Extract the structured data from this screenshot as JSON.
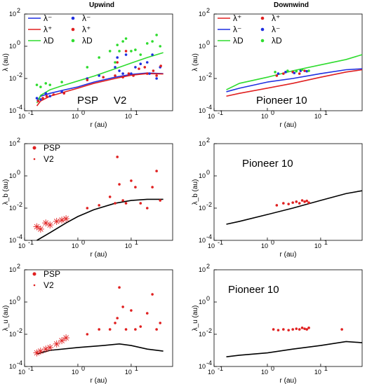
{
  "header": {
    "left_title": "Upwind",
    "right_title": "Downwind"
  },
  "axes": {
    "xlabel": "r (au)",
    "ylabels": [
      "λ (au)",
      "λ (au)",
      "λ_b (au)",
      "λ_b (au)",
      "λ_u (au)",
      "λ_u (au)"
    ],
    "xticks": [
      "10",
      "10",
      "10",
      "10"
    ],
    "xtick_exp": [
      "-1",
      "0",
      "1",
      ""
    ],
    "yticks": [
      "10",
      "10",
      "10",
      "10"
    ],
    "ytick_exp": [
      "-4",
      "-2",
      "0",
      "2"
    ]
  },
  "annotations": {
    "psp": "PSP",
    "v2": "V2",
    "pioneer": "Pioneer 10"
  },
  "legends": {
    "upwind_top": [
      "λ⁻",
      "λ⁺",
      "λ_D",
      "λ⁻",
      "λ⁺",
      "λ_D"
    ],
    "downwind_top": [
      "λ⁺",
      "λ⁻",
      "λ_D",
      "λ⁺",
      "λ⁻",
      "λ_D"
    ],
    "upwind_bottom": [
      "PSP",
      "V2"
    ]
  },
  "colors": {
    "blue": "#1f2fe0",
    "red": "#e02020",
    "green": "#2fdc2f",
    "black": "#000000"
  },
  "chart_data": [
    {
      "panel": "upwind-lambda",
      "type": "line",
      "title": "Upwind",
      "xlabel": "r (au)",
      "ylabel": "λ (au)",
      "xscale": "log",
      "yscale": "log",
      "xlim": [
        0.1,
        60
      ],
      "ylim": [
        0.0001,
        100
      ],
      "series": [
        {
          "name": "λ⁻ model",
          "color": "#1f2fe0",
          "kind": "line",
          "x": [
            0.17,
            0.2,
            0.3,
            0.5,
            1,
            2,
            5,
            10,
            20,
            40
          ],
          "y": [
            0.0004,
            0.0008,
            0.0012,
            0.0018,
            0.003,
            0.006,
            0.012,
            0.018,
            0.022,
            0.02
          ]
        },
        {
          "name": "λ⁺ model",
          "color": "#e02020",
          "kind": "line",
          "x": [
            0.17,
            0.2,
            0.3,
            0.5,
            1,
            2,
            5,
            10,
            20,
            40
          ],
          "y": [
            0.0002,
            0.0004,
            0.0008,
            0.0013,
            0.0025,
            0.005,
            0.01,
            0.016,
            0.02,
            0.019
          ]
        },
        {
          "name": "λ_D model",
          "color": "#2fdc2f",
          "kind": "line",
          "x": [
            0.17,
            0.2,
            0.3,
            0.5,
            1,
            2,
            5,
            10,
            20,
            40
          ],
          "y": [
            0.0003,
            0.0009,
            0.002,
            0.0035,
            0.007,
            0.014,
            0.04,
            0.09,
            0.2,
            0.4
          ]
        },
        {
          "name": "λ⁻ data",
          "color": "#1f2fe0",
          "kind": "points",
          "x": [
            0.17,
            0.2,
            0.25,
            0.3,
            0.5,
            1.5,
            2.5,
            5,
            5.5,
            6,
            7,
            8,
            10,
            12,
            15,
            20,
            22,
            25,
            30,
            35
          ],
          "y": [
            0.0006,
            0.0005,
            0.0012,
            0.0008,
            0.0015,
            0.01,
            0.015,
            0.05,
            0.2,
            0.03,
            0.02,
            0.3,
            0.02,
            0.05,
            0.08,
            0.1,
            0.02,
            0.3,
            0.01,
            0.05
          ]
        },
        {
          "name": "λ⁺ data",
          "color": "#e02020",
          "kind": "points",
          "x": [
            0.18,
            0.22,
            0.26,
            0.35,
            0.55,
            1.5,
            3,
            5,
            5.5,
            7,
            8,
            9,
            11,
            14,
            18,
            20,
            26,
            30,
            36
          ],
          "y": [
            0.0004,
            0.0006,
            0.0008,
            0.001,
            0.0012,
            0.008,
            0.012,
            0.015,
            0.1,
            0.012,
            0.5,
            0.02,
            0.015,
            0.04,
            0.05,
            0.02,
            0.03,
            0.015,
            0.06
          ]
        },
        {
          "name": "λ_D data",
          "color": "#2fdc2f",
          "kind": "points",
          "x": [
            0.17,
            0.2,
            0.25,
            0.3,
            0.5,
            1.5,
            2.5,
            4,
            5,
            5.5,
            6,
            7,
            8,
            10,
            12,
            15,
            20,
            25,
            30,
            35
          ],
          "y": [
            0.004,
            0.003,
            0.005,
            0.004,
            0.006,
            0.05,
            0.2,
            0.5,
            0.1,
            1.2,
            0.5,
            2,
            3,
            0.5,
            0.6,
            0.3,
            1.5,
            2,
            5,
            1
          ]
        }
      ]
    },
    {
      "panel": "downwind-lambda",
      "type": "line",
      "title": "Downwind",
      "xlabel": "r (au)",
      "ylabel": "λ (au)",
      "xscale": "log",
      "yscale": "log",
      "xlim": [
        0.1,
        60
      ],
      "ylim": [
        0.0001,
        100
      ],
      "series": [
        {
          "name": "λ⁺ model",
          "color": "#e02020",
          "kind": "line",
          "x": [
            0.17,
            0.3,
            1,
            3,
            10,
            30,
            60
          ],
          "y": [
            0.0008,
            0.0012,
            0.0025,
            0.005,
            0.012,
            0.025,
            0.035
          ]
        },
        {
          "name": "λ⁻ model",
          "color": "#1f2fe0",
          "kind": "line",
          "x": [
            0.17,
            0.3,
            1,
            3,
            10,
            30,
            60
          ],
          "y": [
            0.0015,
            0.0025,
            0.006,
            0.01,
            0.02,
            0.035,
            0.04
          ]
        },
        {
          "name": "λ_D model",
          "color": "#2fdc2f",
          "kind": "line",
          "x": [
            0.17,
            0.3,
            1,
            3,
            10,
            30,
            60
          ],
          "y": [
            0.002,
            0.005,
            0.012,
            0.03,
            0.07,
            0.15,
            0.3
          ]
        },
        {
          "name": "λ⁺ data",
          "color": "#e02020",
          "kind": "points",
          "x": [
            1.5,
            2,
            3,
            4,
            5
          ],
          "y": [
            0.015,
            0.02,
            0.025,
            0.02,
            0.03
          ]
        },
        {
          "name": "λ⁻ data",
          "color": "#1f2fe0",
          "kind": "points",
          "x": [
            1.6,
            2.2,
            3.2,
            4.2,
            5.5
          ],
          "y": [
            0.02,
            0.025,
            0.022,
            0.03,
            0.028
          ]
        },
        {
          "name": "λ_D data",
          "color": "#2fdc2f",
          "kind": "points",
          "x": [
            1.4,
            2.4,
            3.5,
            4.5,
            6
          ],
          "y": [
            0.025,
            0.03,
            0.028,
            0.035,
            0.03
          ]
        }
      ]
    },
    {
      "panel": "upwind-lambda-b",
      "type": "scatter",
      "xlabel": "r (au)",
      "ylabel": "λ_b (au)",
      "xscale": "log",
      "yscale": "log",
      "xlim": [
        0.1,
        60
      ],
      "ylim": [
        0.0001,
        100
      ],
      "series": [
        {
          "name": "model",
          "color": "#000000",
          "kind": "line",
          "x": [
            0.17,
            0.3,
            0.6,
            1,
            2,
            5,
            10,
            20,
            40
          ],
          "y": [
            0.0001,
            0.0003,
            0.0012,
            0.003,
            0.008,
            0.02,
            0.03,
            0.035,
            0.035
          ]
        },
        {
          "name": "PSP",
          "color": "#e02020",
          "kind": "star",
          "x": [
            0.17,
            0.2,
            0.25,
            0.3,
            0.4,
            0.5,
            0.6
          ],
          "y": [
            0.0007,
            0.0005,
            0.0012,
            0.0009,
            0.0015,
            0.0018,
            0.0022
          ]
        },
        {
          "name": "V2",
          "color": "#e02020",
          "kind": "points",
          "x": [
            1.5,
            2.5,
            4,
            5,
            5.5,
            6,
            7,
            8,
            10,
            12,
            15,
            20,
            25,
            30,
            35
          ],
          "y": [
            0.01,
            0.015,
            0.05,
            0.02,
            15,
            0.3,
            0.03,
            0.02,
            0.5,
            0.2,
            0.02,
            0.01,
            0.2,
            2,
            0.03
          ]
        }
      ]
    },
    {
      "panel": "downwind-lambda-b",
      "type": "scatter",
      "xlabel": "r (au)",
      "ylabel": "λ_b (au)",
      "xscale": "log",
      "yscale": "log",
      "xlim": [
        0.1,
        60
      ],
      "ylim": [
        0.0001,
        100
      ],
      "series": [
        {
          "name": "model",
          "color": "#000000",
          "kind": "line",
          "x": [
            0.17,
            0.3,
            1,
            3,
            10,
            30,
            60
          ],
          "y": [
            0.001,
            0.0015,
            0.004,
            0.01,
            0.03,
            0.08,
            0.12
          ]
        },
        {
          "name": "Pioneer 10",
          "color": "#e02020",
          "kind": "points",
          "x": [
            1.5,
            2,
            2.5,
            3,
            3.5,
            4,
            4.5,
            5,
            5.5,
            6
          ],
          "y": [
            0.015,
            0.02,
            0.018,
            0.022,
            0.025,
            0.02,
            0.03,
            0.025,
            0.028,
            0.022
          ]
        }
      ]
    },
    {
      "panel": "upwind-lambda-u",
      "type": "scatter",
      "xlabel": "r (au)",
      "ylabel": "λ_u (au)",
      "xscale": "log",
      "yscale": "log",
      "xlim": [
        0.1,
        60
      ],
      "ylim": [
        0.0001,
        100
      ],
      "series": [
        {
          "name": "model",
          "color": "#000000",
          "kind": "line",
          "x": [
            0.17,
            0.3,
            1,
            3,
            6,
            10,
            20,
            40
          ],
          "y": [
            0.0006,
            0.001,
            0.0015,
            0.002,
            0.0025,
            0.002,
            0.0012,
            0.0009
          ]
        },
        {
          "name": "PSP",
          "color": "#e02020",
          "kind": "star",
          "x": [
            0.17,
            0.2,
            0.25,
            0.3,
            0.4,
            0.5,
            0.6
          ],
          "y": [
            0.0007,
            0.0009,
            0.0012,
            0.0015,
            0.0025,
            0.004,
            0.006
          ]
        },
        {
          "name": "V2",
          "color": "#e02020",
          "kind": "points",
          "x": [
            1.5,
            2.5,
            4,
            5,
            5.5,
            6,
            7,
            8,
            10,
            12,
            15,
            20,
            25,
            30,
            35
          ],
          "y": [
            0.01,
            0.02,
            0.02,
            0.05,
            0.1,
            8,
            0.5,
            0.02,
            0.3,
            0.02,
            0.03,
            0.2,
            3,
            0.02,
            0.05
          ]
        }
      ]
    },
    {
      "panel": "downwind-lambda-u",
      "type": "scatter",
      "xlabel": "r (au)",
      "ylabel": "λ_u (au)",
      "xscale": "log",
      "yscale": "log",
      "xlim": [
        0.1,
        60
      ],
      "ylim": [
        0.0001,
        100
      ],
      "series": [
        {
          "name": "model",
          "color": "#000000",
          "kind": "line",
          "x": [
            0.17,
            0.3,
            1,
            3,
            10,
            30,
            60
          ],
          "y": [
            0.0004,
            0.0005,
            0.0007,
            0.0012,
            0.002,
            0.0035,
            0.003
          ]
        },
        {
          "name": "Pioneer 10",
          "color": "#e02020",
          "kind": "points",
          "x": [
            1.3,
            1.6,
            2,
            2.5,
            3,
            3.5,
            4,
            4.5,
            5,
            5.5,
            6,
            25
          ],
          "y": [
            0.02,
            0.018,
            0.02,
            0.018,
            0.02,
            0.022,
            0.02,
            0.025,
            0.022,
            0.02,
            0.025,
            0.02
          ]
        }
      ]
    }
  ]
}
